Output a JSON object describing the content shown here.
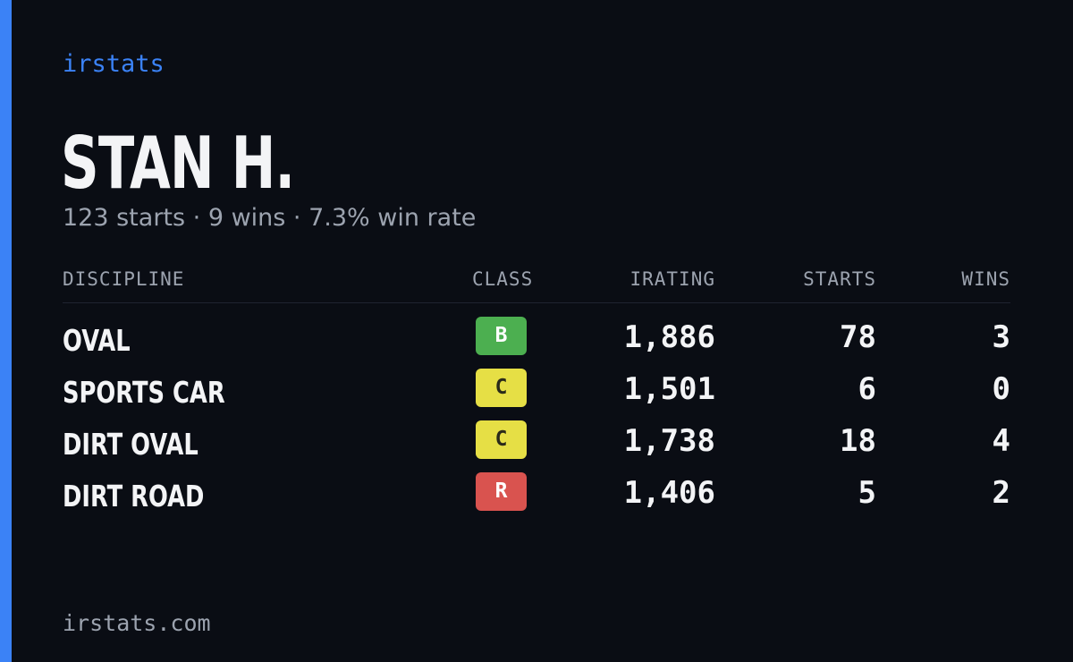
{
  "brand": "irstats",
  "driver": {
    "name": "STAN H.",
    "summary": "123 starts · 9 wins · 7.3% win rate"
  },
  "table": {
    "headers": {
      "discipline": "DISCIPLINE",
      "class": "CLASS",
      "irating": "IRATING",
      "starts": "STARTS",
      "wins": "WINS"
    },
    "rows": [
      {
        "discipline": "OVAL",
        "class": "B",
        "class_color": "#4caf50",
        "class_text_color": "#ffffff",
        "irating": "1,886",
        "starts": "78",
        "wins": "3"
      },
      {
        "discipline": "SPORTS CAR",
        "class": "C",
        "class_color": "#e6df45",
        "class_text_color": "#2a2a1a",
        "irating": "1,501",
        "starts": "6",
        "wins": "0"
      },
      {
        "discipline": "DIRT OVAL",
        "class": "C",
        "class_color": "#e6df45",
        "class_text_color": "#2a2a1a",
        "irating": "1,738",
        "starts": "18",
        "wins": "4"
      },
      {
        "discipline": "DIRT ROAD",
        "class": "R",
        "class_color": "#d9534f",
        "class_text_color": "#ffffff",
        "irating": "1,406",
        "starts": "5",
        "wins": "2"
      }
    ]
  },
  "footer": "irstats.com",
  "colors": {
    "accent": "#3b82f6",
    "background": "#0a0d14",
    "text_primary": "#f3f4f6",
    "text_muted": "#9ca3af"
  }
}
